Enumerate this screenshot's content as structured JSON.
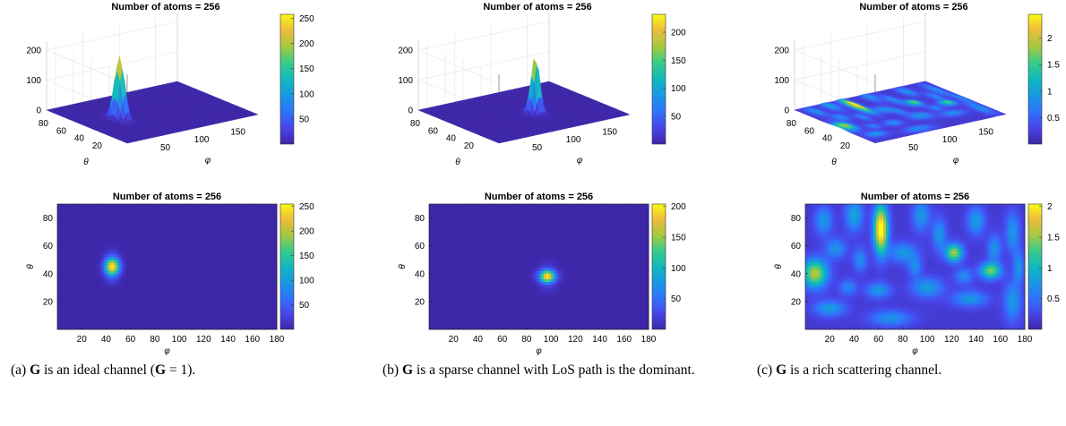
{
  "chart_data": [
    {
      "type": "heatmap",
      "view": "3d-surface",
      "title": "Number of atoms = 256",
      "xlabel": "φ",
      "ylabel": "θ",
      "xticks": [
        "50",
        "100",
        "150"
      ],
      "yticks": [
        "80",
        "60",
        "40",
        "20"
      ],
      "zticks": [
        "200",
        "100",
        "0"
      ],
      "colorbar_ticks": [
        "250",
        "200",
        "150",
        "100",
        "50"
      ],
      "peak": {
        "phi": 45,
        "theta": 45,
        "value": 255
      }
    },
    {
      "type": "heatmap",
      "view": "3d-surface",
      "title": "Number of atoms = 256",
      "xlabel": "φ",
      "ylabel": "θ",
      "xticks": [
        "50",
        "100",
        "150"
      ],
      "yticks": [
        "80",
        "60",
        "40",
        "20"
      ],
      "zticks": [
        "200",
        "100",
        "0"
      ],
      "colorbar_ticks": [
        "200",
        "150",
        "100",
        "50"
      ],
      "peak": {
        "phi": 97,
        "theta": 38,
        "value": 230
      }
    },
    {
      "type": "heatmap",
      "view": "3d-surface",
      "title": "Number of atoms = 256",
      "xlabel": "φ",
      "ylabel": "θ",
      "xticks": [
        "50",
        "100",
        "150"
      ],
      "yticks": [
        "80",
        "60",
        "40",
        "20"
      ],
      "zticks": [
        "200",
        "100",
        "0"
      ],
      "colorbar_ticks": [
        "2",
        "1.5",
        "1",
        "0.5"
      ],
      "peak": {
        "phi": 62,
        "theta": 72,
        "value": 2.4
      }
    },
    {
      "type": "heatmap",
      "view": "2d",
      "title": "Number of atoms = 256",
      "xlabel": "φ",
      "ylabel": "θ",
      "xticks": [
        "20",
        "40",
        "60",
        "80",
        "100",
        "120",
        "140",
        "160",
        "180"
      ],
      "yticks": [
        "80",
        "60",
        "40",
        "20"
      ],
      "colorbar_ticks": [
        "250",
        "200",
        "150",
        "100",
        "50"
      ],
      "xlim": [
        0,
        180
      ],
      "ylim": [
        0,
        90
      ],
      "peak": {
        "phi": 45,
        "theta": 45,
        "value": 255
      }
    },
    {
      "type": "heatmap",
      "view": "2d",
      "title": "Number of atoms = 256",
      "xlabel": "φ",
      "ylabel": "θ",
      "xticks": [
        "20",
        "40",
        "60",
        "80",
        "100",
        "120",
        "140",
        "160",
        "180"
      ],
      "yticks": [
        "80",
        "60",
        "40",
        "20"
      ],
      "colorbar_ticks": [
        "200",
        "150",
        "100",
        "50"
      ],
      "xlim": [
        0,
        180
      ],
      "ylim": [
        0,
        90
      ],
      "peak": {
        "phi": 97,
        "theta": 38,
        "value": 230
      }
    },
    {
      "type": "heatmap",
      "view": "2d",
      "title": "Number of atoms = 256",
      "xlabel": "φ",
      "ylabel": "θ",
      "xticks": [
        "20",
        "40",
        "60",
        "80",
        "100",
        "120",
        "140",
        "160",
        "180"
      ],
      "yticks": [
        "80",
        "60",
        "40",
        "20"
      ],
      "colorbar_ticks": [
        "2",
        "1.5",
        "1",
        "0.5"
      ],
      "xlim": [
        0,
        180
      ],
      "ylim": [
        0,
        90
      ],
      "peak": {
        "phi": 62,
        "theta": 72,
        "value": 2.4
      }
    }
  ],
  "captions": [
    {
      "label": "(a)",
      "pre": "",
      "bold": "G",
      "post": " is an ideal channel (",
      "bold2": "G",
      "post2": " = 1)."
    },
    {
      "label": "(b)",
      "pre": "",
      "bold": "G",
      "post": " is a sparse channel with LoS path is the dominant.",
      "bold2": "",
      "post2": ""
    },
    {
      "label": "(c)",
      "pre": "",
      "bold": "G",
      "post": " is a rich scattering channel.",
      "bold2": "",
      "post2": ""
    }
  ]
}
